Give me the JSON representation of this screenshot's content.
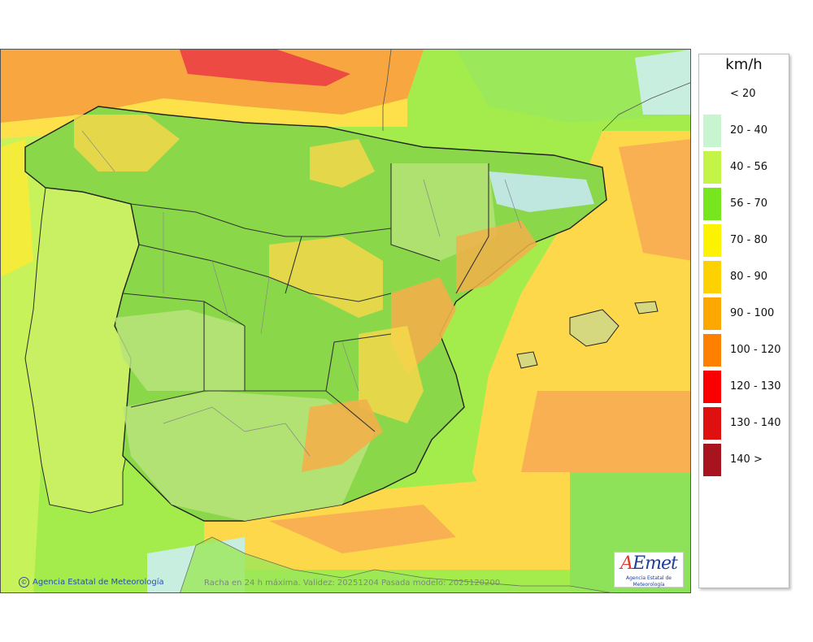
{
  "legend": {
    "unit": "km/h",
    "items": [
      {
        "label": "< 20",
        "color": "#ffffff"
      },
      {
        "label": "20 - 40",
        "color": "#c6f5cf"
      },
      {
        "label": "40 - 56",
        "color": "#c4f448"
      },
      {
        "label": "56 - 70",
        "color": "#78e61e"
      },
      {
        "label": "70 - 80",
        "color": "#fdf200"
      },
      {
        "label": "80 - 90",
        "color": "#fdd200"
      },
      {
        "label": "90 - 100",
        "color": "#fda800"
      },
      {
        "label": "100 - 120",
        "color": "#fd8000"
      },
      {
        "label": "120 - 130",
        "color": "#fb0000"
      },
      {
        "label": "130 - 140",
        "color": "#de1010"
      },
      {
        "label": "140 >",
        "color": "#a8141e"
      }
    ]
  },
  "footer": {
    "credit": "Agencia Estatal de Meteorología",
    "caption": "Racha en 24 h máxima. Validez: 20251204 Pasada modelo: 2025120200"
  },
  "logo": {
    "word_a": "A",
    "word_rest": "Emet",
    "subtitle": "Agencia Estatal de Meteorología"
  }
}
